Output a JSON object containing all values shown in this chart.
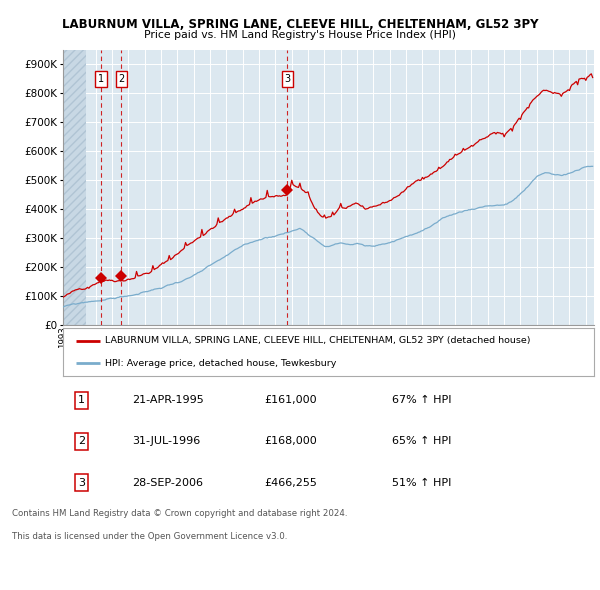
{
  "title1": "LABURNUM VILLA, SPRING LANE, CLEEVE HILL, CHELTENHAM, GL52 3PY",
  "title2": "Price paid vs. HM Land Registry's House Price Index (HPI)",
  "transactions": [
    {
      "label": "1",
      "date_num": 1995.31,
      "price": 161000
    },
    {
      "label": "2",
      "date_num": 1996.58,
      "price": 168000
    },
    {
      "label": "3",
      "date_num": 2006.74,
      "price": 466255
    }
  ],
  "legend_house": "LABURNUM VILLA, SPRING LANE, CLEEVE HILL, CHELTENHAM, GL52 3PY (detached house",
  "legend_hpi": "HPI: Average price, detached house, Tewkesbury",
  "table_rows": [
    [
      "1",
      "21-APR-1995",
      "£161,000",
      "67% ↑ HPI"
    ],
    [
      "2",
      "31-JUL-1996",
      "£168,000",
      "65% ↑ HPI"
    ],
    [
      "3",
      "28-SEP-2006",
      "£466,255",
      "51% ↑ HPI"
    ]
  ],
  "footnote1": "Contains HM Land Registry data © Crown copyright and database right 2024.",
  "footnote2": "This data is licensed under the Open Government Licence v3.0.",
  "ylim": [
    0,
    950000
  ],
  "yticks": [
    0,
    100000,
    200000,
    300000,
    400000,
    500000,
    600000,
    700000,
    800000,
    900000
  ],
  "ytick_labels": [
    "£0",
    "£100K",
    "£200K",
    "£300K",
    "£400K",
    "£500K",
    "£600K",
    "£700K",
    "£800K",
    "£900K"
  ],
  "plot_bg": "#dce8f0",
  "red_line_color": "#cc0000",
  "blue_line_color": "#7aaccc",
  "vline_color": "#cc0000",
  "box_color": "#cc0000",
  "hatch_end": 1994.42,
  "xlim_start": 1993.0,
  "xlim_end": 2025.5
}
